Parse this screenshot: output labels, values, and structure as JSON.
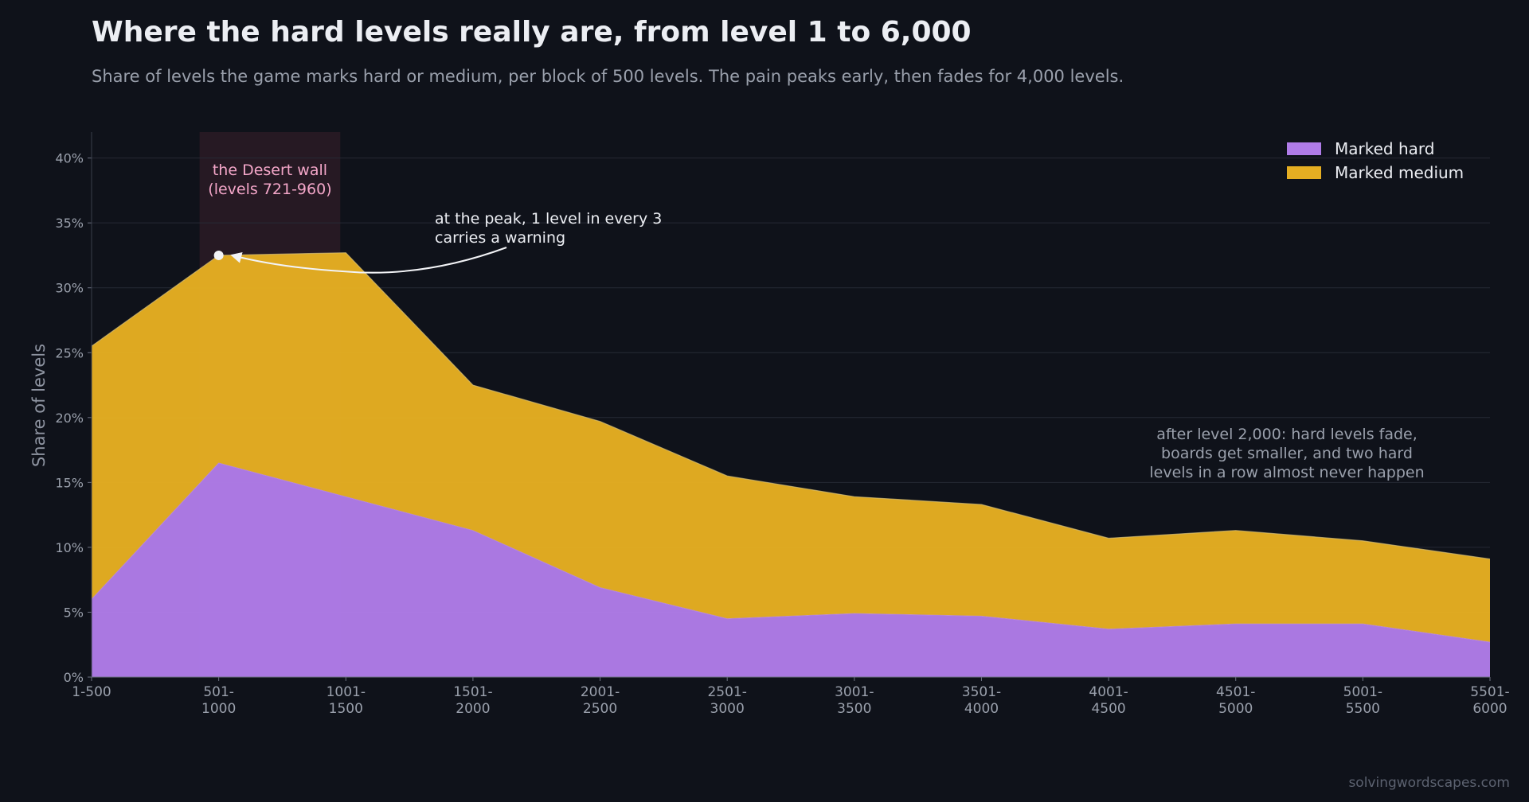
{
  "title": "Where the hard levels really are, from level 1 to 6,000",
  "subtitle": "Share of levels the game marks hard or medium, per block of 500 levels. The pain peaks early, then fades for 4,000 levels.",
  "source": "solvingwordscapes.com",
  "colors": {
    "background": "#0f121a",
    "hard": "#b07ce8",
    "medium": "#e5ae22",
    "highlight_text": "#f3a6c8",
    "highlight_band": "#3a1f2b"
  },
  "chart_data": {
    "type": "area",
    "stacked": true,
    "ylabel": "Share of levels",
    "xlabel": "",
    "ylim": [
      0,
      42
    ],
    "yticks": [
      "0%",
      "5%",
      "10%",
      "15%",
      "20%",
      "25%",
      "30%",
      "35%",
      "40%"
    ],
    "categories": [
      "1-500",
      "501-1000",
      "1001-1500",
      "1501-2000",
      "2001-2500",
      "2501-3000",
      "3001-3500",
      "3501-4000",
      "4001-4500",
      "4501-5000",
      "5001-5500",
      "5501-6000"
    ],
    "category_lines": [
      [
        "1-500"
      ],
      [
        "501-",
        "1000"
      ],
      [
        "1001-",
        "1500"
      ],
      [
        "1501-",
        "2000"
      ],
      [
        "2001-",
        "2500"
      ],
      [
        "2501-",
        "3000"
      ],
      [
        "3001-",
        "3500"
      ],
      [
        "3501-",
        "4000"
      ],
      [
        "4001-",
        "4500"
      ],
      [
        "4501-",
        "5000"
      ],
      [
        "5001-",
        "5500"
      ],
      [
        "5501-",
        "6000"
      ]
    ],
    "series": [
      {
        "name": "Marked hard",
        "values": [
          6.0,
          16.5,
          13.9,
          11.3,
          6.9,
          4.5,
          4.9,
          4.7,
          3.7,
          4.1,
          4.1,
          2.7
        ]
      },
      {
        "name": "Marked medium",
        "values": [
          19.5,
          16.0,
          18.8,
          11.2,
          12.8,
          11.0,
          9.0,
          8.6,
          7.0,
          7.2,
          6.4,
          6.4
        ]
      }
    ],
    "legend_position": "top-right",
    "grid": true,
    "highlight": {
      "from_category": "501-1000",
      "to_category": "1001-1500",
      "label_lines": [
        "the Desert wall",
        "(levels 721-960)"
      ]
    },
    "annotations": [
      {
        "lines": [
          "at the peak, 1 level in every 3",
          "carries a warning"
        ],
        "point_category": "501-1000",
        "point_value": 32.5
      },
      {
        "lines": [
          "after level 2,000: hard levels fade,",
          "boards get smaller, and two hard",
          "levels in a row almost never happen"
        ]
      }
    ]
  }
}
